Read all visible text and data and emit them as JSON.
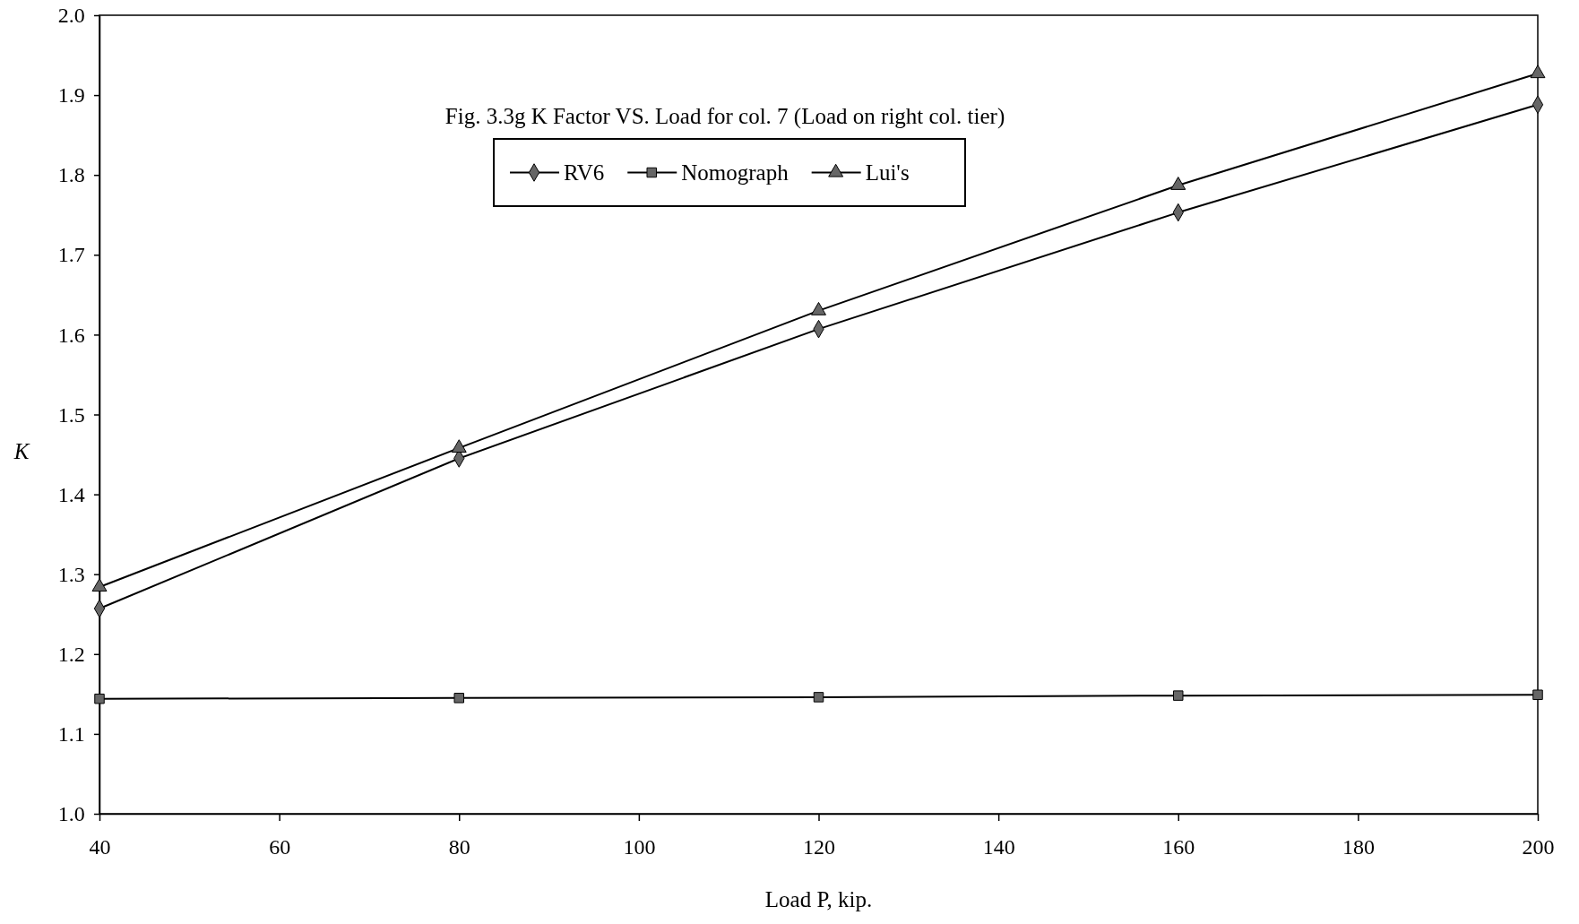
{
  "chart_data": {
    "type": "line",
    "title": "Fig. 3.3g K Factor VS. Load for col. 7 (Load on right col. tier)",
    "xlabel": "Load P, kip.",
    "ylabel": "K",
    "x": [
      40,
      80,
      120,
      160,
      200
    ],
    "series": [
      {
        "name": "RV6",
        "color": "#000000",
        "marker": "diamond",
        "values": [
          1.257,
          1.445,
          1.607,
          1.753,
          1.888
        ]
      },
      {
        "name": "Nomograph",
        "color": "#000000",
        "marker": "square",
        "values": [
          1.144,
          1.145,
          1.146,
          1.148,
          1.149
        ]
      },
      {
        "name": "Lui's",
        "color": "#000000",
        "marker": "triangle",
        "values": [
          1.284,
          1.458,
          1.63,
          1.787,
          1.927
        ]
      }
    ],
    "xlim": [
      40,
      200
    ],
    "xticks": [
      40,
      60,
      80,
      100,
      120,
      140,
      160,
      180,
      200
    ],
    "ylim": [
      1.0,
      2.0
    ],
    "yticks": [
      {
        "value": 1.0,
        "label": "1.0"
      },
      1.1,
      1.2,
      1.3,
      1.4,
      1.5,
      1.6,
      1.7,
      1.8,
      1.9,
      {
        "value": 2.0,
        "label": "2.0"
      }
    ],
    "grid": false,
    "legend": "top",
    "line_style": "solid"
  }
}
